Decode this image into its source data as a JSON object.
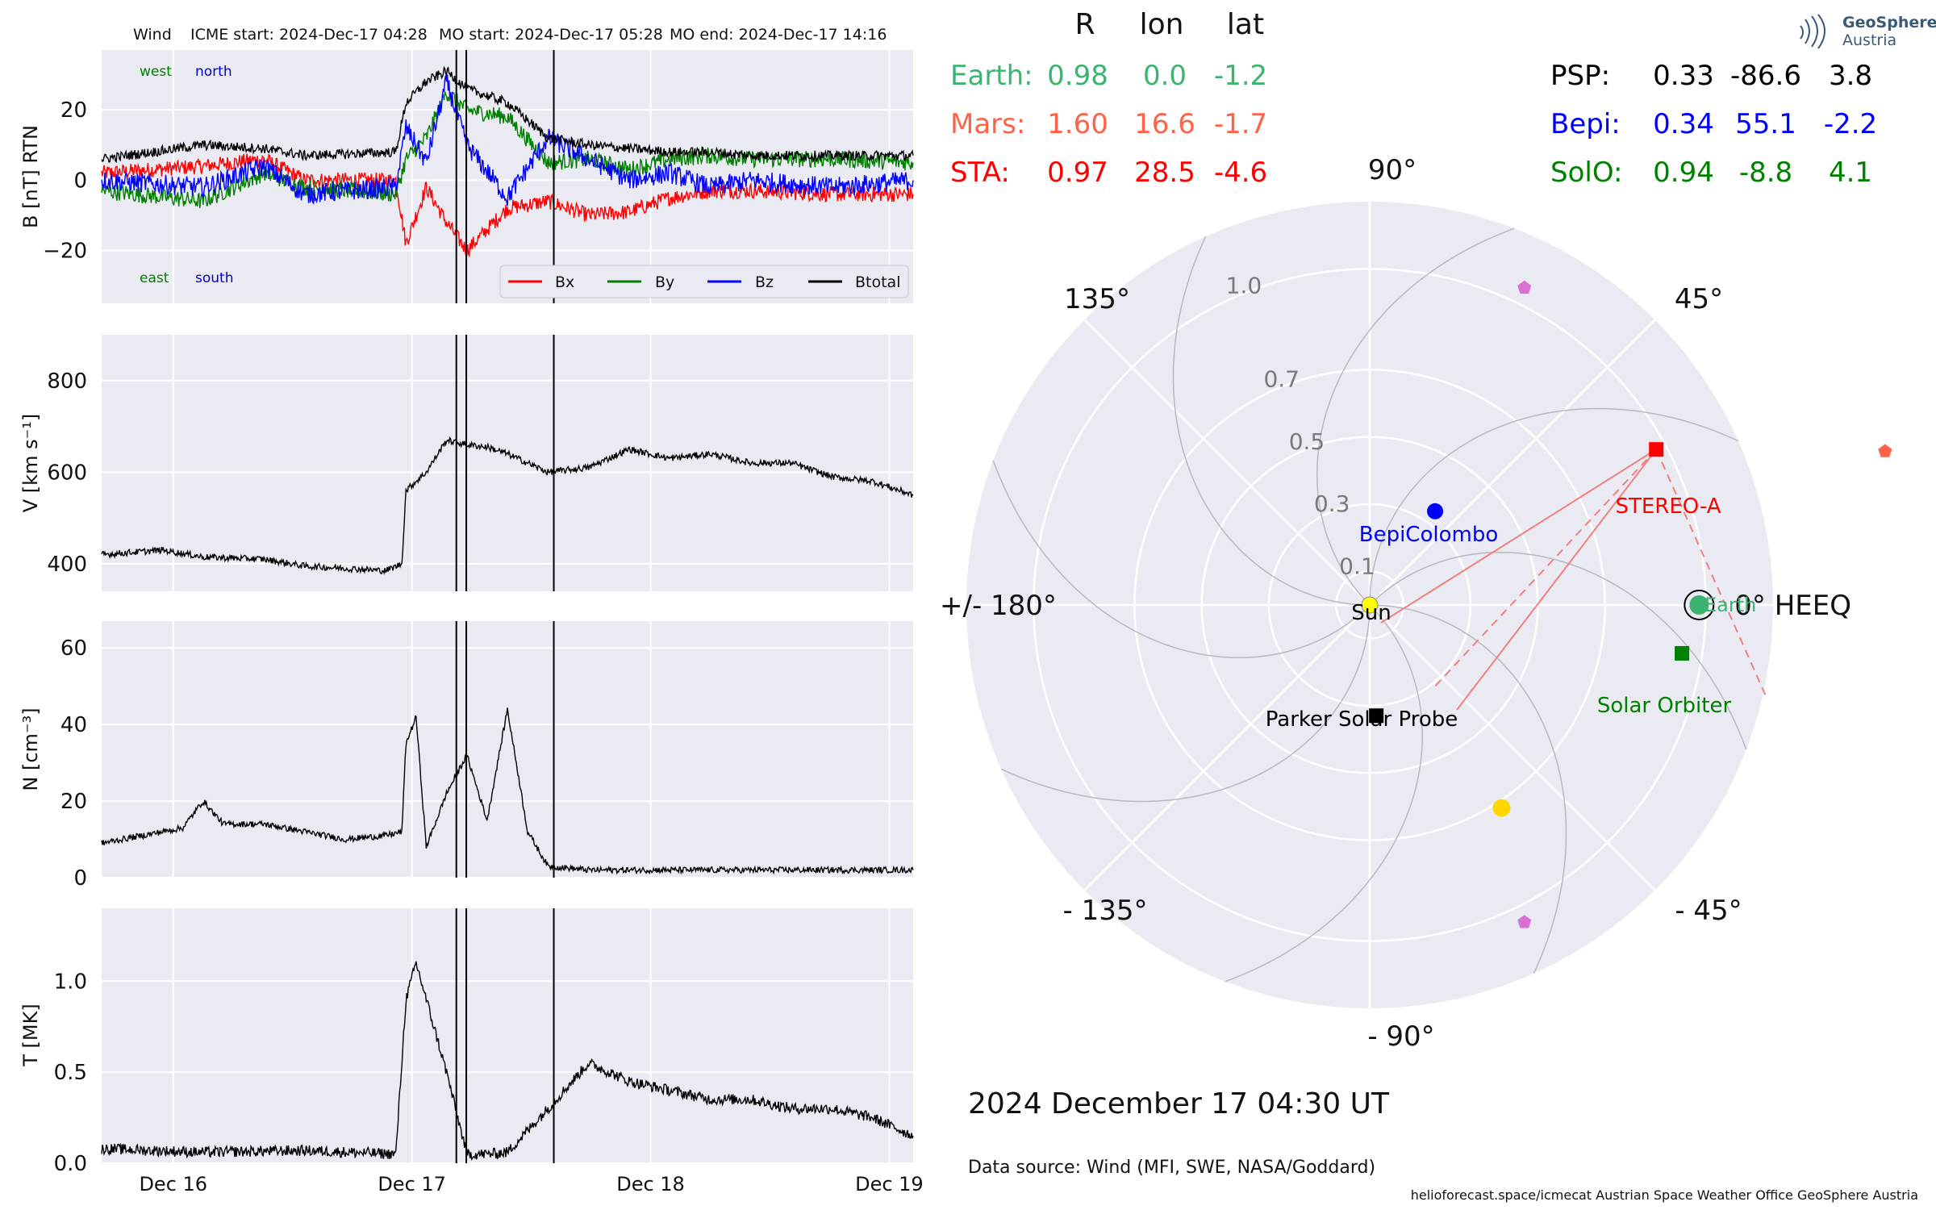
{
  "header": {
    "spacecraft": "Wind",
    "icme_start": "ICME start: 2024-Dec-17 04:28",
    "mo_start": "MO start: 2024-Dec-17 05:28",
    "mo_end": "MO end: 2024-Dec-17 14:16"
  },
  "logo": {
    "line1": "GeoSphere",
    "line2": "Austria"
  },
  "positions_table": {
    "headers": [
      "R",
      "lon",
      "lat"
    ],
    "left_rows": [
      {
        "name": "Earth:",
        "r": "0.98",
        "lon": "0.0",
        "lat": "-1.2",
        "color": "#3cb371"
      },
      {
        "name": "Mars:",
        "r": "1.60",
        "lon": "16.6",
        "lat": "-1.7",
        "color": "#ff6347"
      },
      {
        "name": "STA:",
        "r": "0.97",
        "lon": "28.5",
        "lat": "-4.6",
        "color": "#ff0000"
      }
    ],
    "right_rows": [
      {
        "name": "PSP:",
        "r": "0.33",
        "lon": "-86.6",
        "lat": "3.8",
        "color": "#000000"
      },
      {
        "name": "Bepi:",
        "r": "0.34",
        "lon": "55.1",
        "lat": "-2.2",
        "color": "#0000ff"
      },
      {
        "name": "SolO:",
        "r": "0.94",
        "lon": "-8.8",
        "lat": "4.1",
        "color": "#008000"
      }
    ]
  },
  "polar_labels": {
    "angles": [
      {
        "text": "0° HEEQ",
        "pos": "right"
      },
      {
        "text": "45°",
        "pos": "upper-right"
      },
      {
        "text": "90°",
        "pos": "top"
      },
      {
        "text": "135°",
        "pos": "upper-left"
      },
      {
        "text": "+/- 180°",
        "pos": "left"
      },
      {
        "text": "- 135°",
        "pos": "lower-left"
      },
      {
        "text": "- 90°",
        "pos": "bottom"
      },
      {
        "text": "- 45°",
        "pos": "lower-right"
      }
    ],
    "radii": [
      "0.1",
      "0.3",
      "0.5",
      "0.7",
      "1.0"
    ],
    "objects": [
      {
        "name": "Sun",
        "color": "#000000"
      },
      {
        "name": "Earth",
        "color": "#3cb371"
      },
      {
        "name": "STEREO-A",
        "color": "#ff0000"
      },
      {
        "name": "BepiColombo",
        "color": "#0000ff"
      },
      {
        "name": "Solar Orbiter",
        "color": "#008000"
      },
      {
        "name": "Parker Solar Probe",
        "color": "#000000"
      }
    ]
  },
  "footer": {
    "datetime": "2024 December 17  04:30 UT",
    "data_source": "Data source: Wind (MFI, SWE, NASA/Goddard)",
    "credits": "helioforecast.space/icmecat   Austrian Space Weather Office   GeoSphere Austria"
  },
  "chart_data": [
    {
      "type": "line",
      "panel": "magnetic field",
      "ylabel": "B [nT] RTN",
      "ylim": [
        -35,
        37
      ],
      "yticks": [
        "20",
        "0",
        "−20"
      ],
      "annotations": [
        "west",
        "north",
        "east",
        "south"
      ],
      "legend": [
        "Bx",
        "By",
        "Bz",
        "Btotal"
      ],
      "legend_placement": "lower-right",
      "series": [
        {
          "name": "Bx",
          "color": "#ff0000",
          "x": [
            0.0,
            0.5,
            0.8,
            1.0,
            1.45,
            1.5,
            1.6,
            1.7,
            1.8,
            2.0,
            2.2,
            2.4,
            2.6,
            2.8,
            3.0,
            3.2,
            3.6,
            4.0
          ],
          "values": [
            2,
            4,
            6,
            0,
            0,
            -18,
            -2,
            -12,
            -20,
            -8,
            -6,
            -10,
            -9,
            -5,
            -3,
            -3,
            -4,
            -4
          ]
        },
        {
          "name": "By",
          "color": "#008000",
          "x": [
            0.0,
            0.5,
            0.8,
            1.0,
            1.45,
            1.5,
            1.6,
            1.7,
            1.8,
            2.0,
            2.2,
            2.4,
            2.6,
            2.8,
            3.0,
            3.2,
            3.6,
            4.0
          ],
          "values": [
            -3,
            -6,
            2,
            -2,
            -4,
            6,
            12,
            25,
            20,
            18,
            5,
            6,
            3,
            6,
            7,
            6,
            6,
            5
          ]
        },
        {
          "name": "Bz",
          "color": "#0000ff",
          "x": [
            0.0,
            0.5,
            0.8,
            1.0,
            1.45,
            1.5,
            1.6,
            1.7,
            1.8,
            2.0,
            2.2,
            2.4,
            2.6,
            2.8,
            3.0,
            3.2,
            3.6,
            4.0
          ],
          "values": [
            0,
            -2,
            4,
            -4,
            -2,
            15,
            5,
            28,
            10,
            -5,
            12,
            6,
            0,
            2,
            -2,
            0,
            -2,
            0
          ]
        },
        {
          "name": "Btotal",
          "color": "#000000",
          "x": [
            0.0,
            0.5,
            0.8,
            1.0,
            1.45,
            1.5,
            1.6,
            1.7,
            1.8,
            2.0,
            2.2,
            2.4,
            2.6,
            2.8,
            3.0,
            3.2,
            3.6,
            4.0
          ],
          "values": [
            6,
            10,
            9,
            7,
            8,
            22,
            28,
            31,
            26,
            22,
            12,
            10,
            9,
            8,
            8,
            7,
            7,
            7
          ]
        }
      ]
    },
    {
      "type": "line",
      "panel": "speed",
      "ylabel": "V [km s⁻¹]",
      "ylim": [
        340,
        900
      ],
      "yticks": [
        "800",
        "600",
        "400"
      ],
      "series": [
        {
          "name": "",
          "color": "#000000",
          "x": [
            0.0,
            0.3,
            0.5,
            0.8,
            1.0,
            1.2,
            1.4,
            1.48,
            1.5,
            1.6,
            1.7,
            1.8,
            1.9,
            2.0,
            2.2,
            2.4,
            2.6,
            2.8,
            3.0,
            3.2,
            3.4,
            3.6,
            3.8,
            4.0
          ],
          "values": [
            420,
            430,
            415,
            410,
            395,
            390,
            385,
            400,
            560,
            600,
            670,
            660,
            655,
            640,
            600,
            610,
            650,
            630,
            640,
            620,
            620,
            590,
            580,
            550
          ]
        }
      ]
    },
    {
      "type": "line",
      "panel": "density",
      "ylabel": "N [cm⁻³]",
      "ylim": [
        0,
        67
      ],
      "yticks": [
        "60",
        "40",
        "20",
        "0"
      ],
      "series": [
        {
          "name": "",
          "color": "#000000",
          "x": [
            0.0,
            0.2,
            0.4,
            0.5,
            0.6,
            0.8,
            1.0,
            1.2,
            1.4,
            1.48,
            1.5,
            1.55,
            1.6,
            1.7,
            1.8,
            1.9,
            2.0,
            2.1,
            2.2,
            2.4,
            2.6,
            3.0,
            3.5,
            4.0
          ],
          "values": [
            9,
            11,
            13,
            20,
            14,
            14,
            12,
            10,
            11,
            12,
            35,
            42,
            8,
            22,
            32,
            15,
            44,
            12,
            3,
            2,
            2,
            2,
            2,
            2
          ]
        }
      ]
    },
    {
      "type": "line",
      "panel": "temperature",
      "ylabel": "T [MK]",
      "ylim": [
        0,
        1.4
      ],
      "yticks": [
        "1.0",
        "0.5",
        "0.0"
      ],
      "xticks": [
        "Dec 16",
        "Dec 17",
        "Dec 18",
        "Dec 19"
      ],
      "xrange_days_since_dec15": [
        0.7,
        4.1
      ],
      "event_lines": [
        "ICME start 2024-Dec-17 04:28",
        "MO start 2024-Dec-17 05:28",
        "MO end 2024-Dec-17 14:16"
      ],
      "series": [
        {
          "name": "",
          "color": "#000000",
          "x": [
            0.0,
            0.5,
            1.0,
            1.45,
            1.5,
            1.55,
            1.6,
            1.7,
            1.8,
            1.9,
            2.0,
            2.2,
            2.4,
            2.6,
            2.8,
            3.0,
            3.2,
            3.4,
            3.6,
            3.8,
            4.0
          ],
          "values": [
            0.08,
            0.06,
            0.07,
            0.05,
            0.9,
            1.1,
            0.9,
            0.5,
            0.05,
            0.05,
            0.06,
            0.3,
            0.55,
            0.45,
            0.4,
            0.35,
            0.35,
            0.3,
            0.3,
            0.25,
            0.15
          ]
        }
      ]
    },
    {
      "type": "scatter",
      "panel": "heliospheric positions (polar, HEEQ)",
      "rlim": [
        0,
        1.2
      ],
      "objects": [
        {
          "name": "Sun",
          "r": 0.0,
          "lon": 0.0,
          "color": "#ffff00"
        },
        {
          "name": "Earth",
          "r": 0.98,
          "lon": 0.0,
          "color": "#3cb371"
        },
        {
          "name": "Mars",
          "r": 1.6,
          "lon": 16.6,
          "color": "#ff6347"
        },
        {
          "name": "STEREO-A",
          "r": 0.97,
          "lon": 28.5,
          "color": "#ff0000"
        },
        {
          "name": "BepiColombo",
          "r": 0.34,
          "lon": 55.1,
          "color": "#0000ff"
        },
        {
          "name": "Solar Orbiter",
          "r": 0.94,
          "lon": -8.8,
          "color": "#008000"
        },
        {
          "name": "Parker Solar Probe",
          "r": 0.33,
          "lon": -86.6,
          "color": "#000000"
        },
        {
          "name": "",
          "r": 0.72,
          "lon": -57.0,
          "color": "#ffd700"
        },
        {
          "name": "",
          "r": 1.05,
          "lon": 64.0,
          "color": "#da70d6"
        },
        {
          "name": "",
          "r": 1.05,
          "lon": -64.0,
          "color": "#da70d6"
        }
      ]
    }
  ]
}
